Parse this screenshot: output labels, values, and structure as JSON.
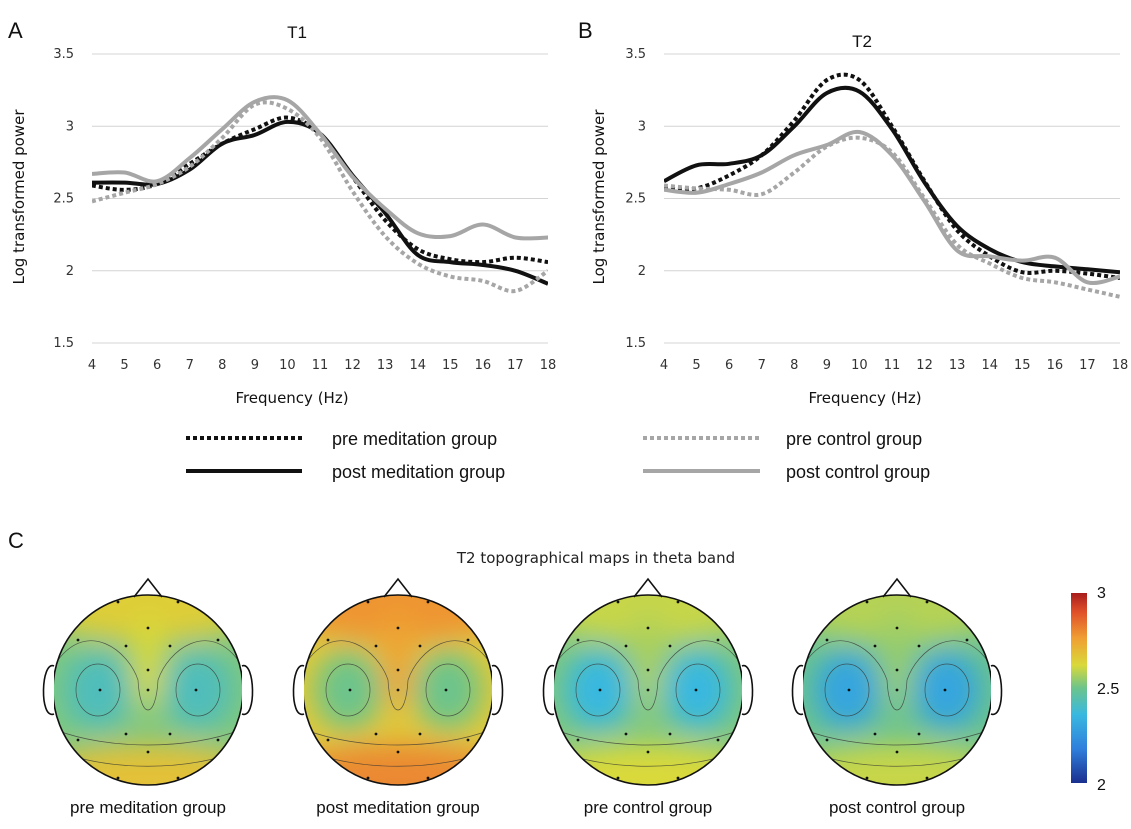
{
  "panel_letters": {
    "a": "A",
    "b": "B",
    "c": "C"
  },
  "legend": {
    "pre_meditation": "pre meditation group",
    "post_meditation": "post meditation group",
    "pre_control": "pre control group",
    "post_control": "post control group"
  },
  "colors": {
    "meditation": "#111111",
    "control": "#a6a6a6",
    "grid": "#d4d4d4"
  },
  "chart_data": [
    {
      "type": "line",
      "title": "T1",
      "xlabel": "Frequency (Hz)",
      "ylabel": "Log transformed power",
      "x": [
        4,
        5,
        6,
        7,
        8,
        9,
        10,
        11,
        12,
        13,
        14,
        15,
        16,
        17,
        18
      ],
      "xlim": [
        4,
        18
      ],
      "ylim": [
        1.5,
        3.5
      ],
      "yticks": [
        "1.5",
        "2",
        "2.5",
        "3",
        "3.5"
      ],
      "xticks": [
        "4",
        "5",
        "6",
        "7",
        "8",
        "9",
        "10",
        "11",
        "12",
        "13",
        "14",
        "15",
        "16",
        "17",
        "18"
      ],
      "grid": true,
      "series": [
        {
          "name": "pre meditation group",
          "style": "dotted",
          "color": "#111111",
          "values": [
            2.59,
            2.56,
            2.6,
            2.74,
            2.88,
            2.98,
            3.06,
            2.95,
            2.65,
            2.35,
            2.15,
            2.08,
            2.06,
            2.09,
            2.06
          ]
        },
        {
          "name": "post meditation group",
          "style": "solid",
          "color": "#111111",
          "values": [
            2.61,
            2.61,
            2.6,
            2.7,
            2.88,
            2.94,
            3.03,
            2.95,
            2.66,
            2.4,
            2.11,
            2.06,
            2.04,
            2.0,
            1.91
          ]
        },
        {
          "name": "pre control group",
          "style": "dotted",
          "color": "#a6a6a6",
          "values": [
            2.48,
            2.54,
            2.6,
            2.72,
            2.92,
            3.15,
            3.12,
            2.92,
            2.55,
            2.24,
            2.05,
            1.96,
            1.93,
            1.86,
            2.0
          ]
        },
        {
          "name": "post control group",
          "style": "solid",
          "color": "#a6a6a6",
          "values": [
            2.67,
            2.68,
            2.62,
            2.78,
            2.98,
            3.17,
            3.18,
            2.95,
            2.65,
            2.43,
            2.26,
            2.24,
            2.32,
            2.23,
            2.23
          ]
        }
      ]
    },
    {
      "type": "line",
      "title": "T2",
      "xlabel": "Frequency (Hz)",
      "ylabel": "Log transformed power",
      "x": [
        4,
        5,
        6,
        7,
        8,
        9,
        10,
        11,
        12,
        13,
        14,
        15,
        16,
        17,
        18
      ],
      "xlim": [
        4,
        18
      ],
      "ylim": [
        1.5,
        3.5
      ],
      "yticks": [
        "1.5",
        "2",
        "2.5",
        "3",
        "3.5"
      ],
      "xticks": [
        "4",
        "5",
        "6",
        "7",
        "8",
        "9",
        "10",
        "11",
        "12",
        "13",
        "14",
        "15",
        "16",
        "17",
        "18"
      ],
      "grid": true,
      "series": [
        {
          "name": "pre meditation group",
          "style": "dotted",
          "color": "#111111",
          "values": [
            2.57,
            2.57,
            2.66,
            2.8,
            3.04,
            3.32,
            3.32,
            3.0,
            2.62,
            2.28,
            2.1,
            1.99,
            2.0,
            1.98,
            1.95
          ]
        },
        {
          "name": "post meditation group",
          "style": "solid",
          "color": "#111111",
          "values": [
            2.62,
            2.73,
            2.74,
            2.8,
            3.0,
            3.23,
            3.24,
            2.98,
            2.61,
            2.31,
            2.15,
            2.06,
            2.03,
            2.01,
            1.99
          ]
        },
        {
          "name": "pre control group",
          "style": "dotted",
          "color": "#a6a6a6",
          "values": [
            2.59,
            2.57,
            2.56,
            2.53,
            2.68,
            2.86,
            2.92,
            2.82,
            2.5,
            2.18,
            2.05,
            1.95,
            1.92,
            1.87,
            1.82
          ]
        },
        {
          "name": "post control group",
          "style": "solid",
          "color": "#a6a6a6",
          "values": [
            2.56,
            2.54,
            2.6,
            2.68,
            2.8,
            2.87,
            2.96,
            2.8,
            2.48,
            2.14,
            2.1,
            2.07,
            2.09,
            1.92,
            1.96
          ]
        }
      ]
    },
    {
      "type": "heatmap",
      "title": "T2 topographical maps in theta band",
      "maps": [
        {
          "label": "pre meditation group",
          "frontal": 2.65,
          "midline": 2.52,
          "temporal": 2.42,
          "occipital": 2.68
        },
        {
          "label": "post meditation group",
          "frontal": 2.78,
          "midline": 2.66,
          "temporal": 2.5,
          "occipital": 2.8
        },
        {
          "label": "pre control group",
          "frontal": 2.6,
          "midline": 2.52,
          "temporal": 2.36,
          "occipital": 2.62
        },
        {
          "label": "post control group",
          "frontal": 2.58,
          "midline": 2.5,
          "temporal": 2.3,
          "occipital": 2.6
        }
      ],
      "colorbar": {
        "min": 2,
        "max": 3,
        "ticks": [
          "3",
          "2.5",
          "2"
        ],
        "colors": [
          "#1a2f8f",
          "#2f7fdc",
          "#39b8e0",
          "#6cc48c",
          "#d9d93a",
          "#f0a032",
          "#e0502a",
          "#a81c1c"
        ]
      }
    }
  ]
}
